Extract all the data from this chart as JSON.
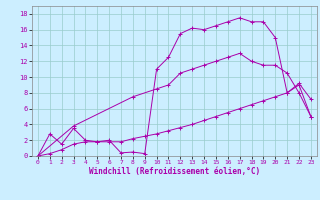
{
  "xlabel": "Windchill (Refroidissement éolien,°C)",
  "bg_color": "#cceeff",
  "grid_color": "#99cccc",
  "line_color": "#aa00aa",
  "xlim": [
    -0.5,
    23.5
  ],
  "ylim": [
    0,
    19
  ],
  "xticks": [
    0,
    1,
    2,
    3,
    4,
    5,
    6,
    7,
    8,
    9,
    10,
    11,
    12,
    13,
    14,
    15,
    16,
    17,
    18,
    19,
    20,
    21,
    22,
    23
  ],
  "yticks": [
    0,
    2,
    4,
    6,
    8,
    10,
    12,
    14,
    16,
    18
  ],
  "line1_x": [
    0,
    1,
    2,
    3,
    4,
    5,
    6,
    7,
    8,
    9,
    10,
    11,
    12,
    13,
    14,
    15,
    16,
    17,
    18,
    19,
    20,
    21,
    22,
    23
  ],
  "line1_y": [
    0.0,
    2.8,
    1.5,
    3.5,
    2.0,
    1.8,
    2.0,
    0.4,
    0.5,
    0.3,
    11.0,
    12.5,
    15.5,
    16.2,
    16.0,
    16.5,
    17.0,
    17.5,
    17.0,
    17.0,
    15.0,
    8.0,
    9.2,
    7.2
  ],
  "line2_x": [
    0,
    1,
    2,
    3,
    4,
    5,
    6,
    7,
    8,
    9,
    10,
    11,
    12,
    13,
    14,
    15,
    16,
    17,
    18,
    19,
    20,
    21,
    22,
    23
  ],
  "line2_y": [
    0.0,
    0.3,
    0.8,
    1.5,
    1.8,
    1.8,
    1.8,
    1.8,
    2.2,
    2.5,
    2.8,
    3.2,
    3.6,
    4.0,
    4.5,
    5.0,
    5.5,
    6.0,
    6.5,
    7.0,
    7.5,
    8.0,
    9.0,
    5.0
  ],
  "line3_x": [
    0,
    3,
    8,
    10,
    11,
    12,
    13,
    14,
    15,
    16,
    17,
    18,
    19,
    20,
    21,
    22,
    23
  ],
  "line3_y": [
    0.0,
    3.8,
    7.5,
    8.5,
    9.0,
    10.5,
    11.0,
    11.5,
    12.0,
    12.5,
    13.0,
    12.0,
    11.5,
    11.5,
    10.5,
    8.0,
    5.0
  ]
}
